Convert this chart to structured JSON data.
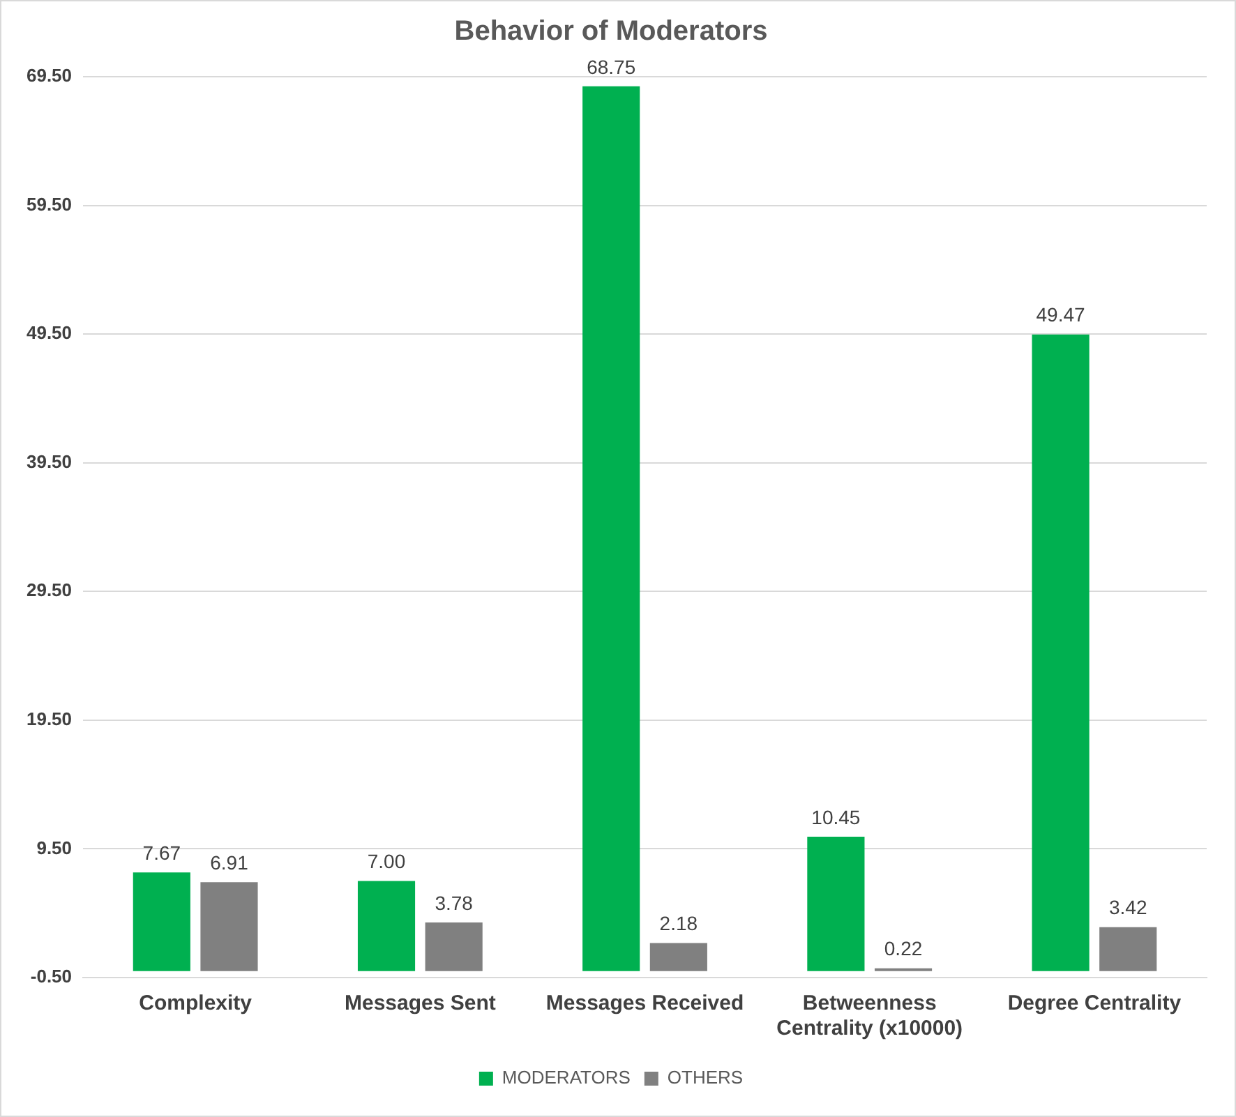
{
  "chart_data": {
    "type": "bar",
    "title": "Behavior of Moderators",
    "categories": [
      "Complexity",
      "Messages Sent",
      "Messages Received",
      "Betweenness Centrality (x10000)",
      "Degree Centrality"
    ],
    "series": [
      {
        "name": "MODERATORS",
        "color": "#00b050",
        "values": [
          7.67,
          7.0,
          68.75,
          10.45,
          49.47
        ],
        "value_labels": [
          "7.67",
          "7.00",
          "68.75",
          "10.45",
          "49.47"
        ]
      },
      {
        "name": "OTHERS",
        "color": "#808080",
        "values": [
          6.91,
          3.78,
          2.18,
          0.22,
          3.42
        ],
        "value_labels": [
          "6.91",
          "3.78",
          "2.18",
          "0.22",
          "3.42"
        ]
      }
    ],
    "ylim": [
      -0.5,
      69.5
    ],
    "yticks": [
      {
        "value": -0.5,
        "label": "-0.50"
      },
      {
        "value": 9.5,
        "label": "9.50"
      },
      {
        "value": 19.5,
        "label": "19.50"
      },
      {
        "value": 29.5,
        "label": "29.50"
      },
      {
        "value": 39.5,
        "label": "39.50"
      },
      {
        "value": 49.5,
        "label": "49.50"
      },
      {
        "value": 59.5,
        "label": "59.50"
      },
      {
        "value": 69.5,
        "label": "69.50"
      }
    ],
    "grid": "y",
    "legend": "bottom"
  }
}
